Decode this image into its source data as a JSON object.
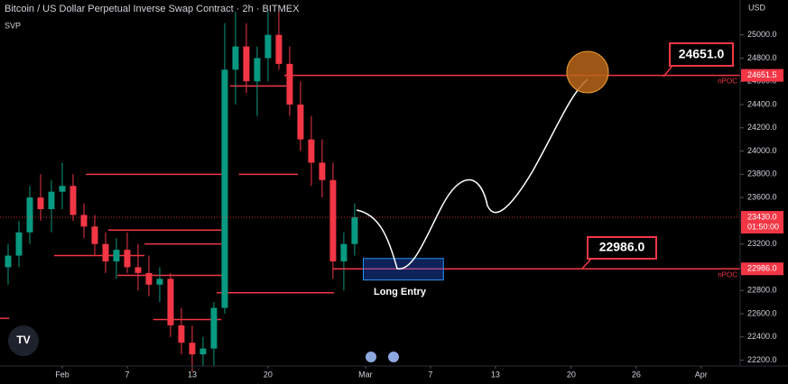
{
  "header": {
    "title": "Bitcoin / US Dollar Perpetual Inverse Swap Contract · 2h · BITMEX",
    "indicator": "SVP",
    "currency": "USD"
  },
  "chart_data": {
    "type": "candlestick",
    "x": [
      -5,
      -4,
      -3,
      -2,
      -1,
      0,
      1,
      2,
      3,
      4,
      5,
      6,
      7,
      8,
      9,
      10,
      11,
      12,
      13,
      14,
      15,
      16,
      17,
      18,
      19,
      20,
      21,
      22,
      23,
      24,
      25,
      26,
      27
    ],
    "open": [
      23000,
      23100,
      23300,
      23600,
      23500,
      23650,
      23700,
      23450,
      23350,
      23200,
      23050,
      23150,
      23000,
      22950,
      22850,
      22900,
      22500,
      22350,
      22250,
      22300,
      22650,
      24700,
      24900,
      24600,
      24800,
      25000,
      24750,
      24400,
      24100,
      23900,
      23750,
      23050,
      23200
    ],
    "high": [
      23200,
      23400,
      23700,
      23800,
      23750,
      23900,
      23800,
      23550,
      23450,
      23300,
      23250,
      23300,
      23200,
      23100,
      23000,
      22950,
      22650,
      22500,
      22400,
      22700,
      25100,
      25200,
      25100,
      24900,
      25200,
      25250,
      24900,
      24600,
      24300,
      24100,
      23900,
      23300,
      23550
    ],
    "low": [
      22850,
      23000,
      23200,
      23400,
      23300,
      23500,
      23400,
      23250,
      23100,
      22950,
      22900,
      22950,
      22800,
      22750,
      22700,
      22400,
      22250,
      22100,
      22150,
      22150,
      22600,
      24400,
      24500,
      24300,
      24600,
      24700,
      24300,
      24000,
      23700,
      23600,
      22900,
      22800,
      23100
    ],
    "close": [
      23100,
      23300,
      23600,
      23500,
      23650,
      23700,
      23450,
      23350,
      23200,
      23050,
      23150,
      23000,
      22950,
      22850,
      22900,
      22500,
      22350,
      22250,
      22300,
      22650,
      24700,
      24900,
      24600,
      24800,
      25000,
      24750,
      24400,
      24100,
      23900,
      23750,
      23050,
      23200,
      23430
    ],
    "up_color": "#089981",
    "down_color": "#f23645",
    "xlim": [
      -5.75,
      62.6
    ],
    "xticks": [
      {
        "value": 0,
        "label": "Feb"
      },
      {
        "value": 6,
        "label": "7"
      },
      {
        "value": 12,
        "label": "13"
      },
      {
        "value": 19,
        "label": "20"
      },
      {
        "value": 28,
        "label": "Mar"
      },
      {
        "value": 34,
        "label": "7"
      },
      {
        "value": 40,
        "label": "13"
      },
      {
        "value": 47,
        "label": "20"
      },
      {
        "value": 53,
        "label": "26"
      },
      {
        "value": 59,
        "label": "Apr"
      }
    ],
    "ylim": [
      22150,
      25300
    ],
    "yticks": [
      {
        "value": 25000,
        "label": "25000.0"
      },
      {
        "value": 24800,
        "label": "24800.0"
      },
      {
        "value": 24600,
        "label": "24600.0"
      },
      {
        "value": 24400,
        "label": "24400.0"
      },
      {
        "value": 24200,
        "label": "24200.0"
      },
      {
        "value": 24000,
        "label": "24000.0"
      },
      {
        "value": 23800,
        "label": "23800.0"
      },
      {
        "value": 23600,
        "label": "23600.0"
      },
      {
        "value": 23400,
        "label": "23400.0"
      },
      {
        "value": 23200,
        "label": "23200.0"
      },
      {
        "value": 23000,
        "label": "23000.0"
      },
      {
        "value": 22800,
        "label": "22800.0"
      },
      {
        "value": 22600,
        "label": "22600.0"
      },
      {
        "value": 22400,
        "label": "22400.0"
      },
      {
        "value": 22200,
        "label": "22200.0"
      }
    ],
    "price_lines": [
      {
        "value": 24651.5,
        "label": "24651.5",
        "tag": "nPOC",
        "start": 20.5
      },
      {
        "value": 22986,
        "label": "22986.0",
        "tag": "nPOC",
        "start": 25
      }
    ],
    "last_price": {
      "value": 23430,
      "label": "23430.0",
      "countdown": "01:50:00"
    },
    "poc_segments": [
      {
        "x": [
          2.2,
          14.7
        ],
        "price": 23800
      },
      {
        "x": [
          4.25,
          14.7
        ],
        "price": 23320
      },
      {
        "x": [
          7.6,
          14.7
        ],
        "price": 23200
      },
      {
        "x": [
          -0.75,
          7.6
        ],
        "price": 23100
      },
      {
        "x": [
          5.1,
          14.7
        ],
        "price": 22930
      },
      {
        "x": [
          14.25,
          25.1
        ],
        "price": 22780
      },
      {
        "x": [
          8.4,
          14.7
        ],
        "price": 22550
      },
      {
        "x": [
          16.3,
          21.75
        ],
        "price": 23800
      },
      {
        "x": [
          15.5,
          20.9
        ],
        "price": 24560
      },
      {
        "x": [
          -5.75,
          -4.9
        ],
        "price": 22560
      }
    ],
    "entry_zone": {
      "low": 22890,
      "high": 23075,
      "x": [
        27.8,
        35.2
      ]
    },
    "annotations": {
      "target": "24651.0",
      "entry_price": "22986.0",
      "entry": "Long Entry"
    }
  }
}
